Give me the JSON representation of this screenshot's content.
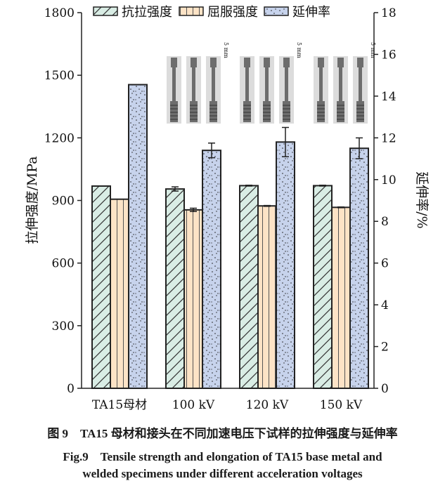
{
  "chart_data": {
    "type": "bar",
    "categories": [
      "TA15母材",
      "100 kV",
      "120 kV",
      "150 kV"
    ],
    "series": [
      {
        "name": "抗拉强度",
        "axis": "left",
        "values": [
          969,
          955,
          971,
          971
        ],
        "errors": [
          0,
          10,
          2,
          2
        ],
        "color": "#d9ede5",
        "pattern": "diagonal-hatch"
      },
      {
        "name": "屈服强度",
        "axis": "left",
        "values": [
          906,
          855,
          874,
          867
        ],
        "errors": [
          0,
          8,
          2,
          2
        ],
        "color": "#fde3c6",
        "pattern": "vertical-lines"
      },
      {
        "name": "延伸率",
        "axis": "right",
        "values": [
          14.55,
          11.4,
          11.8,
          11.5
        ],
        "errors": [
          0,
          0.35,
          0.7,
          0.5
        ],
        "color": "#c7d3ec",
        "pattern": "dots"
      }
    ],
    "ylabel": "拉伸强度/MPa",
    "y2label": "延伸率/%",
    "ylim": [
      0,
      1800
    ],
    "y2lim": [
      0,
      18
    ],
    "yticks": [
      0,
      300,
      600,
      900,
      1200,
      1500,
      1800
    ],
    "y2ticks": [
      0,
      2,
      4,
      6,
      8,
      10,
      12,
      14,
      16,
      18
    ],
    "legend": "top",
    "grid": false,
    "inset_scale_label": "5 mm"
  },
  "caption": {
    "cn": "图 9　TA15 母材和接头在不同加速电压下试样的拉伸强度与延伸率",
    "en_line1": "Fig.9　Tensile strength and elongation of TA15 base metal and",
    "en_line2": "welded specimens under different acceleration voltages"
  }
}
